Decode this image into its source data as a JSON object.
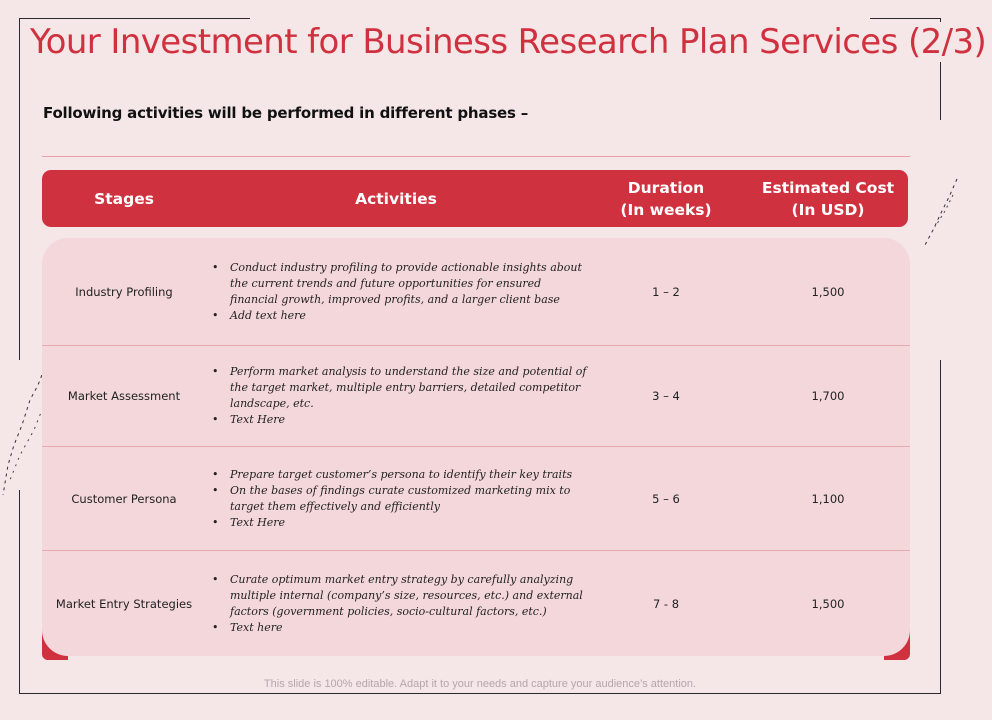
{
  "title": "Your Investment for Business Research Plan Services (2/3)",
  "subtitle": "Following activities will be performed in different phases –",
  "table": {
    "headers": {
      "stages": "Stages",
      "activities": "Activities",
      "duration_line1": "Duration",
      "duration_line2": "(In weeks)",
      "cost_line1": "Estimated Cost",
      "cost_line2": "(In USD)"
    },
    "rows": [
      {
        "stage": "Industry Profiling",
        "activities": [
          "Conduct industry profiling to provide actionable insights about the current trends and future opportunities for ensured financial growth, improved profits, and a larger client base",
          "Add text here"
        ],
        "duration": "1 – 2",
        "cost": "1,500"
      },
      {
        "stage": "Market Assessment",
        "activities": [
          "Perform market analysis to understand the size and potential of the target market,  multiple entry barriers, detailed competitor landscape,  etc.",
          "Text Here"
        ],
        "duration": "3 – 4",
        "cost": "1,700"
      },
      {
        "stage": "Customer Persona",
        "activities": [
          "Prepare target customer’s persona to identify their key traits",
          "On the bases of findings curate customized  marketing mix to target them effectively and efficiently",
          "Text Here"
        ],
        "duration": "5 – 6",
        "cost": "1,100"
      },
      {
        "stage": "Market Entry Strategies",
        "activities": [
          "Curate optimum market entry strategy by carefully analyzing multiple internal (company’s size, resources, etc.) and external factors (government policies, socio-cultural factors, etc.)",
          "Text here"
        ],
        "duration": "7 - 8",
        "cost": "1,500"
      }
    ]
  },
  "footer": "This slide is 100% editable. Adapt it to your needs and capture your audience’s attention.",
  "colors": {
    "accent": "#d0313f",
    "background": "#f5e6e8",
    "row_fill": "#f3d7db"
  }
}
